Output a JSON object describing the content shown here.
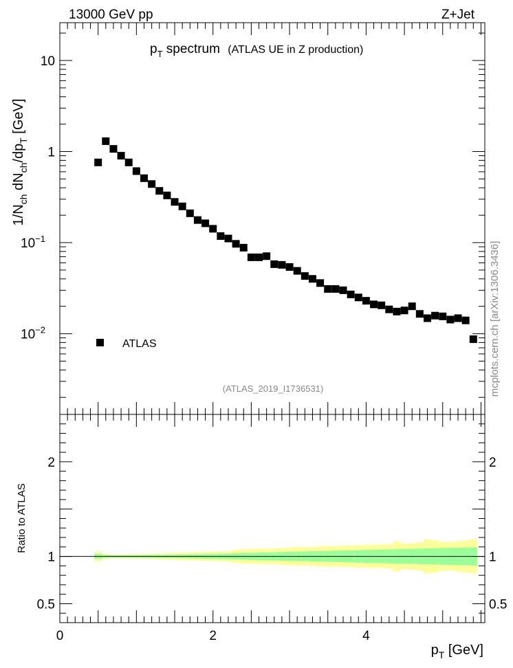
{
  "header": {
    "left": "13000 GeV pp",
    "right": "Z+Jet"
  },
  "plot_title": {
    "main": "p",
    "main_sub": "T",
    "main_rest": " spectrum",
    "detail": "(ATLAS UE in Z production)"
  },
  "analysis_id": "(ATLAS_2019_I1736531)",
  "side_credit": "mcplots.cern.ch [arXiv:1306.3436]",
  "chart_data": [
    {
      "type": "scatter",
      "panel": "main",
      "ylabel": "1/N_ch dN_ch/dp_T [GeV]",
      "yscale": "log",
      "ylim": [
        0.0013,
        26
      ],
      "xlim": [
        0,
        5.55
      ],
      "y_ticks": [
        {
          "value": 10,
          "label": "10"
        },
        {
          "value": 1,
          "label": "1"
        },
        {
          "value": 0.1,
          "label": "10",
          "exp": "−1"
        },
        {
          "value": 0.01,
          "label": "10",
          "exp": "−2"
        }
      ],
      "legend": {
        "position": "bottom-left",
        "entries": [
          "ATLAS"
        ]
      },
      "series": [
        {
          "name": "ATLAS",
          "marker": "square",
          "color": "#000000",
          "x": [
            0.5,
            0.6,
            0.7,
            0.8,
            0.9,
            1.0,
            1.1,
            1.2,
            1.3,
            1.4,
            1.5,
            1.6,
            1.7,
            1.8,
            1.9,
            2.0,
            2.1,
            2.2,
            2.3,
            2.4,
            2.5,
            2.6,
            2.7,
            2.8,
            2.9,
            3.0,
            3.1,
            3.2,
            3.3,
            3.4,
            3.5,
            3.6,
            3.7,
            3.8,
            3.9,
            4.0,
            4.1,
            4.2,
            4.3,
            4.4,
            4.5,
            4.6,
            4.7,
            4.8,
            4.9,
            5.0,
            5.1,
            5.2,
            5.3,
            5.4
          ],
          "y": [
            0.76,
            1.3,
            1.07,
            0.9,
            0.76,
            0.61,
            0.51,
            0.44,
            0.37,
            0.33,
            0.28,
            0.25,
            0.21,
            0.177,
            0.163,
            0.142,
            0.118,
            0.111,
            0.097,
            0.088,
            0.069,
            0.069,
            0.071,
            0.058,
            0.057,
            0.054,
            0.049,
            0.043,
            0.04,
            0.036,
            0.031,
            0.031,
            0.03,
            0.027,
            0.025,
            0.023,
            0.021,
            0.0205,
            0.0185,
            0.0175,
            0.018,
            0.02,
            0.0165,
            0.0148,
            0.0158,
            0.0155,
            0.0143,
            0.0148,
            0.014,
            0.0087
          ]
        }
      ]
    },
    {
      "type": "area",
      "panel": "ratio",
      "ylabel": "Ratio to ATLAS",
      "xlabel": "p_T [GeV]",
      "ylim": [
        0.3,
        2.5
      ],
      "xlim": [
        0,
        5.55
      ],
      "y_ticks": [
        {
          "value": 2,
          "label": "2"
        },
        {
          "value": 1,
          "label": "1"
        },
        {
          "value": 0.5,
          "label": "0.5"
        }
      ],
      "x_ticks": [
        {
          "value": 0,
          "label": "0"
        },
        {
          "value": 2,
          "label": "2"
        },
        {
          "value": 4,
          "label": "4"
        }
      ],
      "bin_edges": [
        0.45,
        0.55,
        0.65,
        0.75,
        0.85,
        0.95,
        1.05,
        1.15,
        1.25,
        1.35,
        1.45,
        1.55,
        1.65,
        1.75,
        1.85,
        1.95,
        2.05,
        2.15,
        2.25,
        2.35,
        2.45,
        2.55,
        2.65,
        2.75,
        2.85,
        2.95,
        3.05,
        3.15,
        3.25,
        3.35,
        3.45,
        3.55,
        3.65,
        3.75,
        3.85,
        3.95,
        4.05,
        4.15,
        4.25,
        4.35,
        4.45,
        4.55,
        4.65,
        4.75,
        4.85,
        4.95,
        5.05,
        5.15,
        5.25,
        5.35,
        5.45
      ],
      "bands": [
        {
          "name": "stat",
          "color": "#99ff99",
          "halfwidth": [
            0.025,
            0.015,
            0.012,
            0.012,
            0.012,
            0.013,
            0.014,
            0.015,
            0.016,
            0.017,
            0.018,
            0.019,
            0.02,
            0.022,
            0.024,
            0.026,
            0.028,
            0.03,
            0.032,
            0.035,
            0.037,
            0.04,
            0.042,
            0.044,
            0.046,
            0.048,
            0.05,
            0.052,
            0.054,
            0.056,
            0.058,
            0.06,
            0.062,
            0.064,
            0.066,
            0.068,
            0.07,
            0.072,
            0.074,
            0.076,
            0.078,
            0.08,
            0.082,
            0.084,
            0.086,
            0.088,
            0.09,
            0.092,
            0.094,
            0.096
          ]
        },
        {
          "name": "syst",
          "color": "#ffff99",
          "halfwidth": [
            0.05,
            0.025,
            0.02,
            0.02,
            0.022,
            0.024,
            0.026,
            0.028,
            0.03,
            0.033,
            0.036,
            0.04,
            0.042,
            0.045,
            0.048,
            0.05,
            0.053,
            0.055,
            0.07,
            0.075,
            0.078,
            0.08,
            0.082,
            0.085,
            0.09,
            0.095,
            0.1,
            0.098,
            0.1,
            0.105,
            0.11,
            0.11,
            0.112,
            0.115,
            0.12,
            0.12,
            0.125,
            0.125,
            0.13,
            0.16,
            0.135,
            0.14,
            0.15,
            0.18,
            0.17,
            0.155,
            0.15,
            0.16,
            0.17,
            0.18
          ]
        }
      ],
      "reference_line": 1
    }
  ]
}
